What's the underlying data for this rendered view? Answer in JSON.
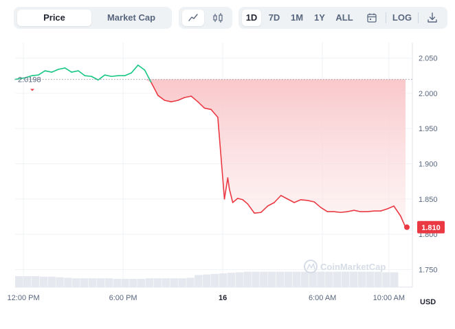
{
  "toolbar": {
    "type_tabs": [
      "Price",
      "Market Cap"
    ],
    "active_type": "Price",
    "chart_icons": [
      "line-chart-icon",
      "candlestick-icon"
    ],
    "ranges": [
      "1D",
      "7D",
      "1M",
      "1Y",
      "ALL"
    ],
    "active_range": "1D",
    "calendar_icon": "calendar-icon",
    "log_label": "LOG",
    "download_icon": "download-icon"
  },
  "colors": {
    "up": "#16c784",
    "down": "#ea3943",
    "fill_top": "#f9c5c8",
    "volume": "#e5e8ee",
    "grid": "#eff2f5"
  },
  "watermark": "CoinMarketCap",
  "currency_label": "USD",
  "chart_data": {
    "type": "line",
    "reference_price": 2.0198,
    "reference_label": "2.0198",
    "current_price": 1.81,
    "current_label": "1.810",
    "ylim": [
      1.725,
      2.072
    ],
    "y_ticks": [
      {
        "v": 2.05,
        "label": "2.050"
      },
      {
        "v": 2.0,
        "label": "2.000"
      },
      {
        "v": 1.95,
        "label": "1.950"
      },
      {
        "v": 1.9,
        "label": "1.900"
      },
      {
        "v": 1.85,
        "label": "1.850"
      },
      {
        "v": 1.8,
        "label": "1.800"
      },
      {
        "v": 1.75,
        "label": "1.750"
      }
    ],
    "xlim": [
      0,
      23.5
    ],
    "x_ticks": [
      {
        "v": 0.5,
        "label": "12:00 PM",
        "bold": false
      },
      {
        "v": 6.5,
        "label": "6:00 PM",
        "bold": false
      },
      {
        "v": 12.5,
        "label": "16",
        "bold": true
      },
      {
        "v": 18.5,
        "label": "6:00 AM",
        "bold": false
      },
      {
        "v": 22.5,
        "label": "10:00 AM",
        "bold": false
      }
    ],
    "series": [
      {
        "x": [
          0,
          0.6,
          1.0,
          1.4,
          1.8,
          2.2,
          2.6,
          3.0,
          3.4,
          3.8,
          4.2,
          4.6,
          5.0,
          5.4,
          5.8,
          6.2,
          6.6,
          7.0,
          7.4,
          7.8,
          8.2,
          8.6,
          9.0,
          9.4,
          9.8,
          10.2,
          10.6,
          11.0,
          11.4,
          11.8,
          12.2,
          12.6,
          12.8,
          12.9,
          13.1,
          13.4,
          13.7,
          14.0,
          14.4,
          14.8,
          15.2,
          15.6,
          16.0,
          16.4,
          16.8,
          17.2,
          17.6,
          18.0,
          18.4,
          18.8,
          19.2,
          19.6,
          20.0,
          20.4,
          20.8,
          21.2,
          21.6,
          22.0,
          22.4,
          22.8,
          23.2,
          23.5
        ],
        "y": [
          2.0198,
          2.022,
          2.025,
          2.026,
          2.032,
          2.03,
          2.034,
          2.036,
          2.03,
          2.032,
          2.025,
          2.024,
          2.019,
          2.026,
          2.024,
          2.025,
          2.025,
          2.029,
          2.04,
          2.033,
          2.015,
          1.997,
          1.99,
          1.988,
          1.99,
          1.994,
          1.996,
          1.988,
          1.979,
          1.977,
          1.966,
          1.85,
          1.88,
          1.864,
          1.845,
          1.851,
          1.849,
          1.843,
          1.83,
          1.831,
          1.84,
          1.845,
          1.855,
          1.85,
          1.845,
          1.849,
          1.848,
          1.846,
          1.838,
          1.832,
          1.832,
          1.831,
          1.832,
          1.834,
          1.832,
          1.832,
          1.833,
          1.833,
          1.836,
          1.84,
          1.826,
          1.81
        ]
      }
    ],
    "volume": [
      0.2,
      0.2,
      0.2,
      0.19,
      0.19,
      0.18,
      0.17,
      0.16,
      0.16,
      0.16,
      0.16,
      0.16,
      0.15,
      0.15,
      0.15,
      0.15,
      0.16,
      0.16,
      0.16,
      0.16,
      0.16,
      0.17,
      0.22,
      0.23,
      0.24,
      0.25,
      0.26,
      0.27,
      0.28,
      0.28,
      0.28,
      0.28,
      0.28,
      0.28,
      0.28,
      0.28,
      0.28,
      0.28,
      0.28,
      0.28,
      0.28,
      0.28,
      0.28,
      0.28,
      0.28,
      0.27,
      0.27
    ]
  }
}
